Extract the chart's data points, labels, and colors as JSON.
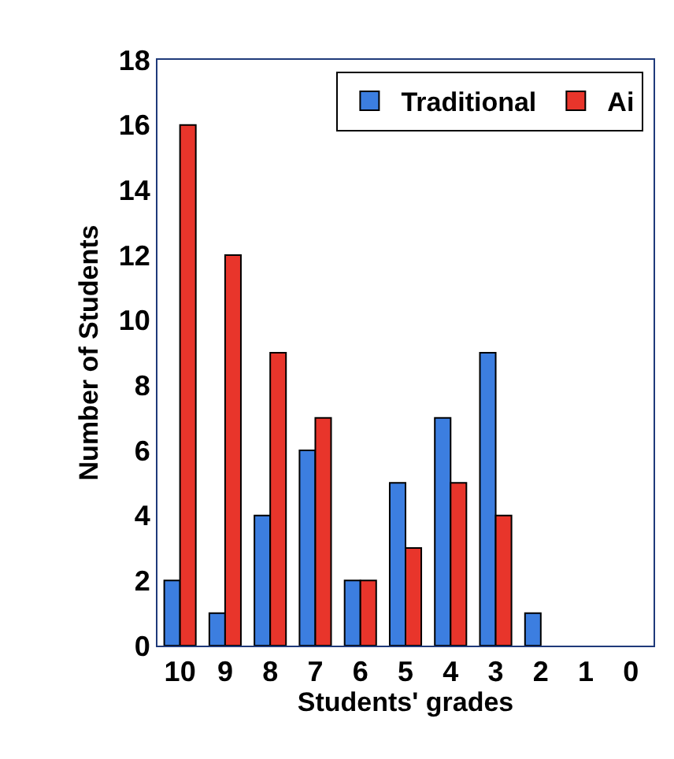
{
  "chart_data": {
    "type": "bar",
    "xlabel": "Students' grades",
    "ylabel": "Number of Students",
    "categories": [
      "10",
      "9",
      "8",
      "7",
      "6",
      "5",
      "4",
      "3",
      "2",
      "1",
      "0"
    ],
    "series": [
      {
        "name": "Traditional",
        "color": "#3c7ee0",
        "values": [
          2,
          1,
          4,
          6,
          2,
          5,
          7,
          9,
          1,
          0,
          0
        ]
      },
      {
        "name": "Ai",
        "color": "#e8352b",
        "values": [
          16,
          12,
          9,
          7,
          2,
          3,
          5,
          4,
          0,
          0,
          0
        ]
      }
    ],
    "ylim": [
      0,
      18
    ],
    "yticks": [
      0,
      2,
      4,
      6,
      8,
      10,
      12,
      14,
      16,
      18
    ],
    "legend": "top right"
  }
}
